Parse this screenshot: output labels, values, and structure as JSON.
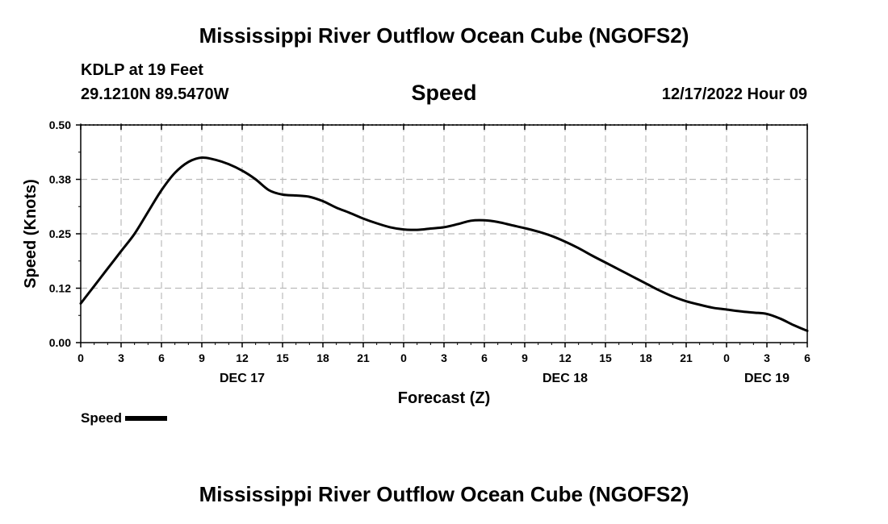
{
  "title_top": "Mississippi River Outflow Ocean Cube (NGOFS2)",
  "title_bottom": "Mississippi River Outflow Ocean Cube (NGOFS2)",
  "station": "KDLP at 19 Feet",
  "coords": "29.1210N  89.5470W",
  "variable": "Speed",
  "datetime": "12/17/2022 Hour 09",
  "chart_data": {
    "type": "line",
    "ylabel": "Speed (Knots)",
    "xlabel": "Forecast (Z)",
    "ylim": [
      0,
      0.5
    ],
    "yticks": [
      "0.00",
      "0.12",
      "0.25",
      "0.38",
      "0.50"
    ],
    "xlim": [
      0,
      54
    ],
    "xticks": [
      "0",
      "3",
      "6",
      "9",
      "12",
      "15",
      "18",
      "21",
      "0",
      "3",
      "6",
      "9",
      "12",
      "15",
      "18",
      "21",
      "0",
      "3",
      "6"
    ],
    "day_labels": [
      {
        "label": "DEC 17",
        "x": 12
      },
      {
        "label": "DEC 18",
        "x": 36
      },
      {
        "label": "DEC 19",
        "x": 51
      }
    ],
    "grid": true,
    "legend": "bottom-left",
    "series": [
      {
        "name": "Speed",
        "color": "#000000",
        "x": [
          0,
          1,
          2,
          3,
          4,
          5,
          6,
          7,
          8,
          9,
          10,
          11,
          12,
          13,
          14,
          15,
          16,
          17,
          18,
          19,
          20,
          21,
          22,
          23,
          24,
          25,
          26,
          27,
          28,
          29,
          30,
          31,
          32,
          33,
          34,
          35,
          36,
          37,
          38,
          39,
          40,
          41,
          42,
          43,
          44,
          45,
          46,
          47,
          48,
          49,
          50,
          51,
          52,
          53,
          54
        ],
        "values": [
          0.09,
          0.13,
          0.17,
          0.21,
          0.25,
          0.3,
          0.35,
          0.39,
          0.415,
          0.425,
          0.42,
          0.41,
          0.395,
          0.375,
          0.35,
          0.34,
          0.338,
          0.335,
          0.325,
          0.31,
          0.298,
          0.285,
          0.274,
          0.265,
          0.26,
          0.259,
          0.262,
          0.265,
          0.272,
          0.28,
          0.281,
          0.277,
          0.27,
          0.263,
          0.255,
          0.245,
          0.232,
          0.217,
          0.2,
          0.184,
          0.168,
          0.152,
          0.136,
          0.12,
          0.106,
          0.095,
          0.087,
          0.08,
          0.076,
          0.072,
          0.069,
          0.066,
          0.055,
          0.04,
          0.027
        ]
      }
    ]
  }
}
